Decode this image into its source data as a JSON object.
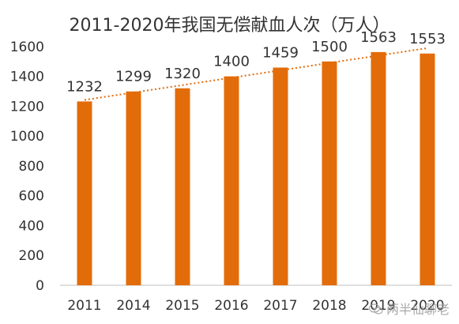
{
  "chart_data": {
    "type": "bar",
    "title": "2011-2020年我国无偿献血人次（万人）",
    "categories": [
      "2011",
      "2014",
      "2015",
      "2016",
      "2017",
      "2018",
      "2019",
      "2020"
    ],
    "values": [
      1232,
      1299,
      1320,
      1400,
      1459,
      1500,
      1563,
      1553
    ],
    "value_labels": [
      "1232",
      "1299",
      "1320",
      "1400",
      "1459",
      "1500",
      "1563",
      "1553"
    ],
    "yticks": [
      0,
      200,
      400,
      600,
      800,
      1000,
      1200,
      1400,
      1600
    ],
    "ylim": [
      0,
      1700
    ],
    "xlabel": "",
    "ylabel": "",
    "grid": false,
    "legend": "none",
    "trendline": {
      "type": "linear",
      "style": "dotted"
    },
    "colors": {
      "bar": "#E36C0A",
      "trendline": "#E36C0A",
      "axis": "#BFBFBF",
      "text": "#333333"
    }
  },
  "watermark": {
    "text": "两半仙聊老",
    "icon": "wechat-icon"
  }
}
